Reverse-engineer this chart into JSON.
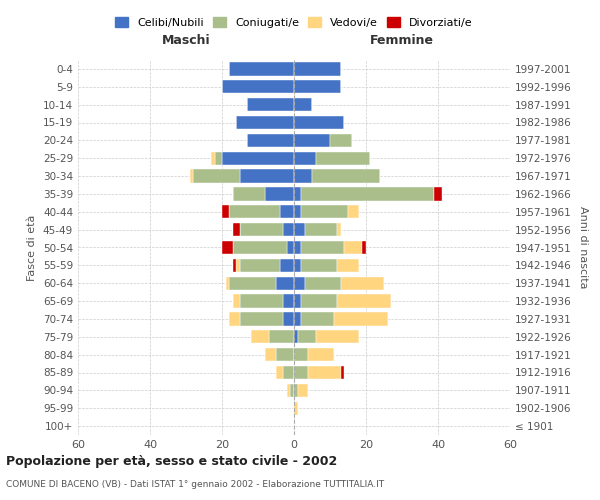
{
  "age_groups": [
    "100+",
    "95-99",
    "90-94",
    "85-89",
    "80-84",
    "75-79",
    "70-74",
    "65-69",
    "60-64",
    "55-59",
    "50-54",
    "45-49",
    "40-44",
    "35-39",
    "30-34",
    "25-29",
    "20-24",
    "15-19",
    "10-14",
    "5-9",
    "0-4"
  ],
  "birth_years": [
    "≤ 1901",
    "1902-1906",
    "1907-1911",
    "1912-1916",
    "1917-1921",
    "1922-1926",
    "1927-1931",
    "1932-1936",
    "1937-1941",
    "1942-1946",
    "1947-1951",
    "1952-1956",
    "1957-1961",
    "1962-1966",
    "1967-1971",
    "1972-1976",
    "1977-1981",
    "1982-1986",
    "1987-1991",
    "1992-1996",
    "1997-2001"
  ],
  "male": {
    "celibi": [
      0,
      0,
      0,
      0,
      0,
      0,
      3,
      3,
      5,
      4,
      2,
      3,
      4,
      8,
      15,
      20,
      13,
      16,
      13,
      20,
      18
    ],
    "coniugati": [
      0,
      0,
      1,
      3,
      5,
      7,
      12,
      12,
      13,
      11,
      15,
      12,
      14,
      9,
      13,
      2,
      0,
      0,
      0,
      0,
      0
    ],
    "vedovi": [
      0,
      0,
      1,
      2,
      3,
      5,
      3,
      2,
      1,
      1,
      0,
      0,
      0,
      0,
      1,
      1,
      0,
      0,
      0,
      0,
      0
    ],
    "divorziati": [
      0,
      0,
      0,
      0,
      0,
      0,
      0,
      0,
      0,
      1,
      3,
      2,
      2,
      0,
      0,
      0,
      0,
      0,
      0,
      0,
      0
    ]
  },
  "female": {
    "nubili": [
      0,
      0,
      0,
      0,
      0,
      1,
      2,
      2,
      3,
      2,
      2,
      3,
      2,
      2,
      5,
      6,
      10,
      14,
      5,
      13,
      13
    ],
    "coniugate": [
      0,
      0,
      1,
      4,
      4,
      5,
      9,
      10,
      10,
      10,
      12,
      9,
      13,
      37,
      19,
      15,
      6,
      0,
      0,
      0,
      0
    ],
    "vedove": [
      0,
      1,
      3,
      9,
      7,
      12,
      15,
      15,
      12,
      6,
      5,
      1,
      3,
      0,
      0,
      0,
      0,
      0,
      0,
      0,
      0
    ],
    "divorziate": [
      0,
      0,
      0,
      1,
      0,
      0,
      0,
      0,
      0,
      0,
      1,
      0,
      0,
      2,
      0,
      0,
      0,
      0,
      0,
      0,
      0
    ]
  },
  "colors": {
    "celibi_nubili": "#4472C4",
    "coniugati": "#AABE8C",
    "vedovi": "#FFD580",
    "divorziati": "#CC0000"
  },
  "xlim": 60,
  "title": "Popolazione per età, sesso e stato civile - 2002",
  "subtitle": "COMUNE DI BACENO (VB) - Dati ISTAT 1° gennaio 2002 - Elaborazione TUTTITALIA.IT",
  "ylabel_left": "Fasce di età",
  "ylabel_right": "Anni di nascita",
  "xlabel_left": "Maschi",
  "xlabel_right": "Femmine",
  "legend_labels": [
    "Celibi/Nubili",
    "Coniugati/e",
    "Vedovi/e",
    "Divorziati/e"
  ]
}
